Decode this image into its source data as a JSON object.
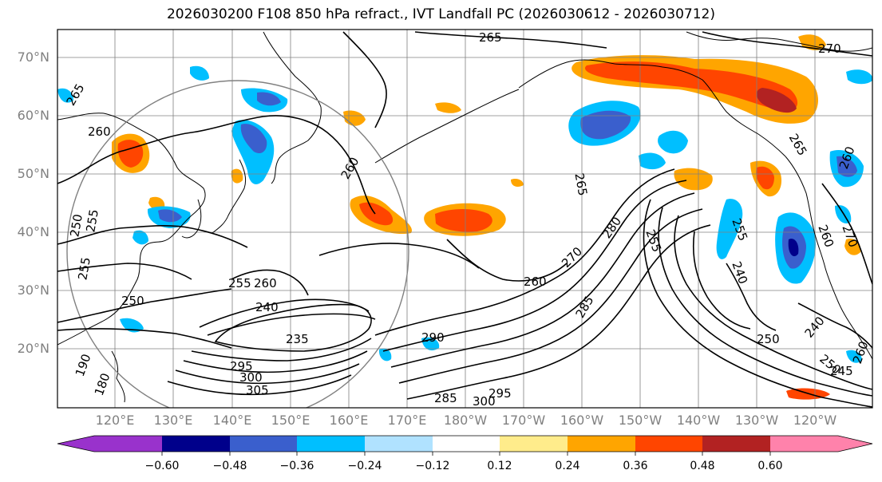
{
  "title": "2026030200 F108 850 hPa refract., IVT Landfall PC (2026030612 - 2026030712)",
  "lat_labels": [
    "70°N",
    "60°N",
    "50°N",
    "40°N",
    "30°N",
    "20°N"
  ],
  "lon_labels": [
    "120°E",
    "130°E",
    "140°E",
    "150°E",
    "160°E",
    "170°E",
    "180°W",
    "170°W",
    "160°W",
    "150°W",
    "140°W",
    "130°W",
    "120°W"
  ],
  "contour_labels": [
    "265",
    "260",
    "260",
    "265",
    "270",
    "265",
    "260",
    "250",
    "255",
    "255",
    "250",
    "255",
    "260",
    "240",
    "235",
    "290",
    "260",
    "270",
    "280",
    "285",
    "295",
    "300",
    "305",
    "190",
    "180",
    "285",
    "300",
    "295",
    "250",
    "255",
    "240",
    "240",
    "250",
    "245",
    "260",
    "270",
    "260",
    "265",
    "255"
  ],
  "colorbar": {
    "ticks": [
      "−0.60",
      "−0.48",
      "−0.36",
      "−0.24",
      "−0.12",
      "0.12",
      "0.24",
      "0.36",
      "0.48",
      "0.60"
    ],
    "colors": [
      "#9932cc",
      "#00008b",
      "#3a5fcd",
      "#00bfff",
      "#b0e2ff",
      "#ffffff",
      "#ffec8b",
      "#ffa500",
      "#ff4500",
      "#b22222",
      "#ff82ab"
    ],
    "extend": "both"
  },
  "colors": {
    "frame": "#000000",
    "grid": "#808080",
    "coast": "#000000",
    "contour": "#000000",
    "circle": "#808080"
  }
}
